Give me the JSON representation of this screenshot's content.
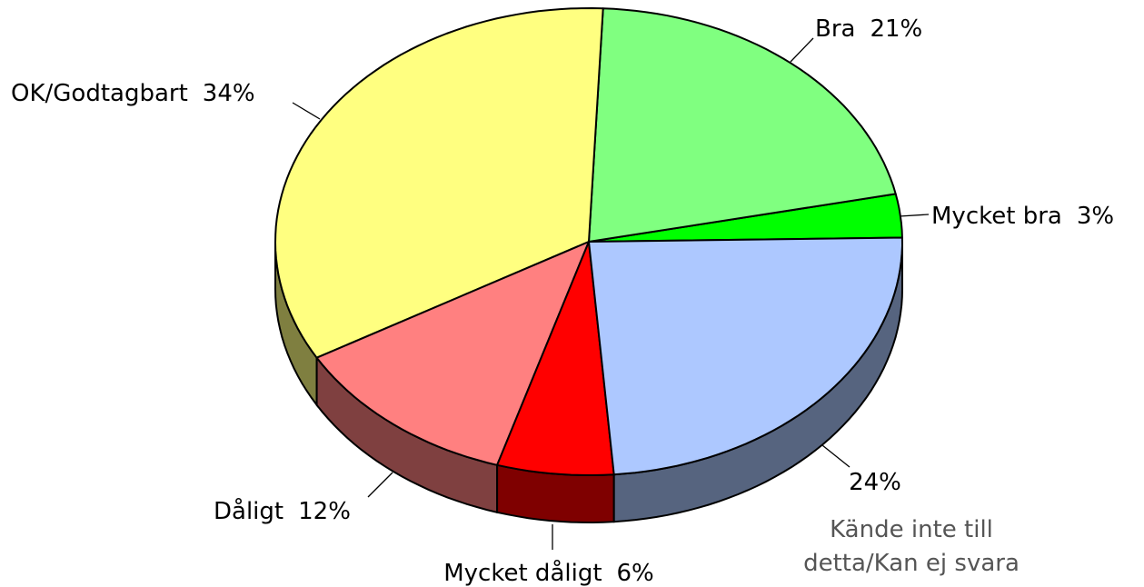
{
  "chart_data": {
    "type": "pie3d",
    "categories": [
      "Mycket bra",
      "Bra",
      "OK/Godtagbart",
      "Dåligt",
      "Mycket dåligt",
      "Kände inte till detta/Kan ej svara"
    ],
    "values": [
      3,
      21,
      34,
      12,
      6,
      24
    ],
    "value_labels": [
      "3%",
      "21%",
      "34%",
      "12%",
      "6%",
      "24%"
    ],
    "colors": [
      "#00ff00",
      "#80ff80",
      "#ffff80",
      "#ff8080",
      "#ff0000",
      "#adc8ff"
    ]
  }
}
